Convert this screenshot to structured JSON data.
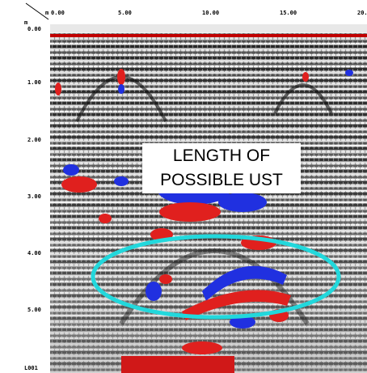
{
  "top_axis": {
    "unit": "m",
    "ticks": [
      "0.00",
      "5.00",
      "10.00",
      "15.00",
      "20."
    ]
  },
  "left_axis": {
    "unit": "m",
    "ticks": [
      "0.00",
      "1.00",
      "2.00",
      "3.00",
      "4.00",
      "5.00"
    ]
  },
  "annotation": {
    "lines": [
      "LENGTH OF",
      "POSSIBLE UST"
    ]
  },
  "profile_label": "L001"
}
